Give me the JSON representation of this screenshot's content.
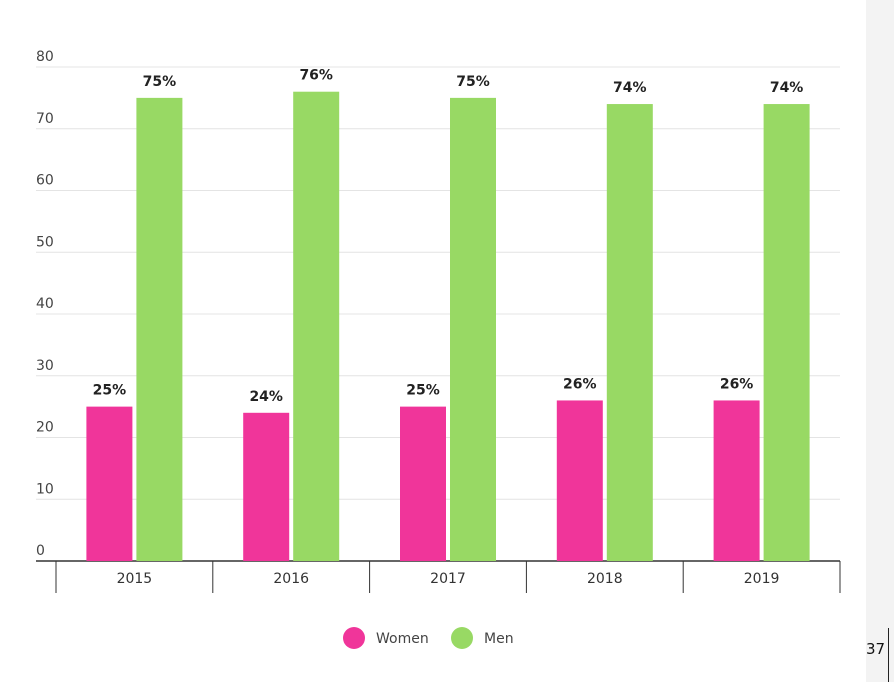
{
  "chart_data": {
    "type": "bar",
    "categories": [
      "2015",
      "2016",
      "2017",
      "2018",
      "2019"
    ],
    "series": [
      {
        "name": "Women",
        "values": [
          25,
          24,
          25,
          26,
          26
        ],
        "labels": [
          "25%",
          "24%",
          "25%",
          "26%",
          "26%"
        ],
        "color": "#f0359a"
      },
      {
        "name": "Men",
        "values": [
          75,
          76,
          75,
          74,
          74
        ],
        "labels": [
          "75%",
          "76%",
          "75%",
          "74%",
          "74%"
        ],
        "color": "#98d964"
      }
    ],
    "yticks": [
      "0",
      "10",
      "20",
      "30",
      "40",
      "50",
      "60",
      "70",
      "80"
    ],
    "ylim": [
      0,
      80
    ],
    "grid": true,
    "legend_position": "bottom-center",
    "title": "",
    "xlabel": "",
    "ylabel": ""
  },
  "page": {
    "number": "37"
  }
}
